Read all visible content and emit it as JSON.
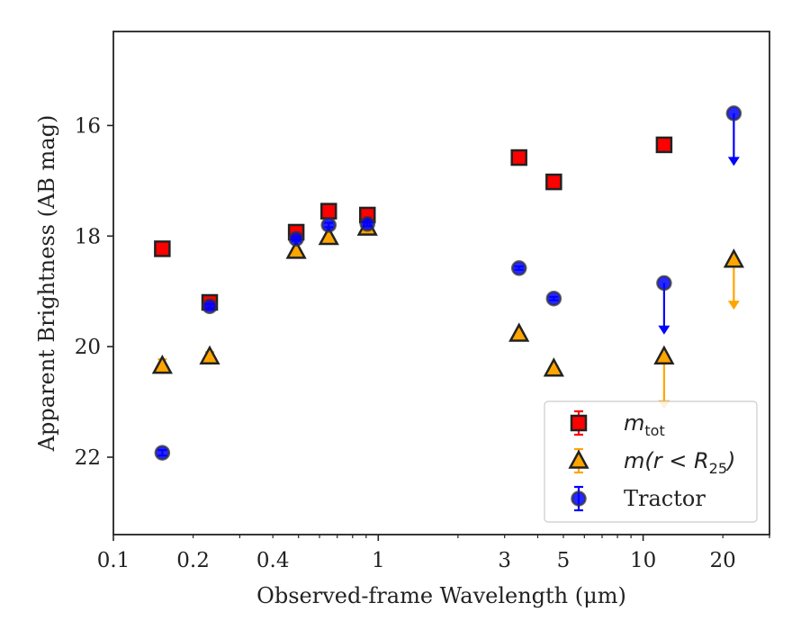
{
  "chart_data": {
    "type": "scatter",
    "title": "",
    "xlabel": "Observed-frame Wavelength (μm)",
    "ylabel": "Apparent Brightness (AB mag)",
    "x_scale": "log",
    "xlim": [
      0.1,
      30
    ],
    "ylim": [
      23.4,
      14.3
    ],
    "y_inverted": true,
    "grid": false,
    "legend_position": "lower-right",
    "x_ticks": [
      {
        "value": 0.1,
        "label": "0.1"
      },
      {
        "value": 0.2,
        "label": "0.2"
      },
      {
        "value": 0.4,
        "label": "0.4"
      },
      {
        "value": 1,
        "label": "1"
      },
      {
        "value": 3,
        "label": "3"
      },
      {
        "value": 5,
        "label": "5"
      },
      {
        "value": 10,
        "label": "10"
      },
      {
        "value": 20,
        "label": "20"
      }
    ],
    "y_ticks": [
      {
        "value": 16,
        "label": "16"
      },
      {
        "value": 18,
        "label": "18"
      },
      {
        "value": 20,
        "label": "20"
      },
      {
        "value": 22,
        "label": "22"
      }
    ],
    "series": [
      {
        "name": "m_tot",
        "legend_main": "m",
        "legend_sub": "tot",
        "marker": "square",
        "color": "#ff0000",
        "points": [
          {
            "x": 0.153,
            "y": 18.23,
            "err": 0.05
          },
          {
            "x": 0.231,
            "y": 19.2,
            "err": 0.06
          },
          {
            "x": 0.49,
            "y": 17.93,
            "err": 0.05
          },
          {
            "x": 0.65,
            "y": 17.55,
            "err": 0.04
          },
          {
            "x": 0.91,
            "y": 17.62,
            "err": 0.04
          },
          {
            "x": 3.4,
            "y": 16.58,
            "err": 0.03
          },
          {
            "x": 4.6,
            "y": 17.02,
            "err": 0.03
          },
          {
            "x": 12.0,
            "y": 16.35,
            "err": 0.03
          }
        ]
      },
      {
        "name": "m(r < R_25)",
        "legend_main": "m(r < R",
        "legend_sub": "25",
        "legend_close": ")",
        "marker": "triangle",
        "color": "#ffa500",
        "points": [
          {
            "x": 0.153,
            "y": 20.35,
            "err": 0.12
          },
          {
            "x": 0.231,
            "y": 20.18,
            "err": 0.08
          },
          {
            "x": 0.49,
            "y": 18.27,
            "err": 0.04
          },
          {
            "x": 0.65,
            "y": 18.02,
            "err": 0.03
          },
          {
            "x": 0.91,
            "y": 17.85,
            "err": 0.03
          },
          {
            "x": 3.4,
            "y": 19.77,
            "err": 0.03
          },
          {
            "x": 4.6,
            "y": 20.4,
            "err": 0.04
          },
          {
            "x": 12.0,
            "y": 20.18,
            "upper_limit": true,
            "arrow_to": 21.1
          },
          {
            "x": 22.0,
            "y": 18.43,
            "upper_limit": true,
            "arrow_to": 19.3
          }
        ]
      },
      {
        "name": "Tractor",
        "legend_main": "Tractor",
        "marker": "circle",
        "color": "#0000ff",
        "points": [
          {
            "x": 0.153,
            "y": 21.92,
            "err": 0.05
          },
          {
            "x": 0.231,
            "y": 19.27,
            "err": 0.04
          },
          {
            "x": 0.49,
            "y": 18.05,
            "err": 0.04
          },
          {
            "x": 0.65,
            "y": 17.8,
            "err": 0.04
          },
          {
            "x": 0.91,
            "y": 17.78,
            "err": 0.04
          },
          {
            "x": 3.4,
            "y": 18.58,
            "err": 0.03
          },
          {
            "x": 4.6,
            "y": 19.13,
            "err": 0.03
          },
          {
            "x": 12.0,
            "y": 18.85,
            "upper_limit": true,
            "arrow_to": 19.75
          },
          {
            "x": 22.0,
            "y": 15.78,
            "upper_limit": true,
            "arrow_to": 16.7
          }
        ]
      }
    ]
  }
}
